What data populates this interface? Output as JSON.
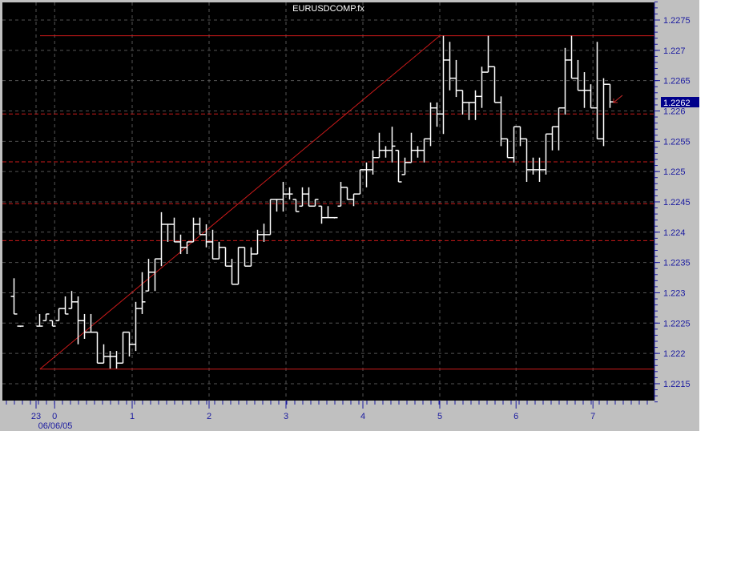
{
  "chart_data": {
    "type": "ohlc-bar",
    "title": "EURUSDCOMP.fx",
    "ylim": [
      1.22115,
      1.22815
    ],
    "yticks": [
      "1.2275",
      "1.227",
      "1.2265",
      "1.226",
      "1.2255",
      "1.225",
      "1.2245",
      "1.224",
      "1.2235",
      "1.223",
      "1.2225",
      "1.222",
      "1.2215"
    ],
    "xticks": [
      {
        "label": "23",
        "bar": 3.5
      },
      {
        "label": "0",
        "bar": 6.4
      },
      {
        "label": "1",
        "bar": 18.5
      },
      {
        "label": "2",
        "bar": 30.5
      },
      {
        "label": "3",
        "bar": 42.5
      },
      {
        "label": "4",
        "bar": 54.5
      },
      {
        "label": "5",
        "bar": 66.5
      },
      {
        "label": "6",
        "bar": 78.4
      },
      {
        "label": "7",
        "bar": 90.4
      }
    ],
    "date_label": "06/06/05",
    "grid": true,
    "last_price": "1.2262",
    "colors": {
      "background": "#000000",
      "bars": "#ffffff",
      "trendlines": "#cc1a1a",
      "axis_text": "#1a1aa0",
      "price_marker": "#00008b",
      "panel": "#c0c0c0"
    },
    "bars_hlc": [
      [
        1.22324,
        1.22265,
        1.22265
      ],
      [
        1.22245,
        1.22245,
        1.22245
      ],
      null,
      null,
      [
        1.22265,
        1.22245,
        1.22245
      ],
      [
        1.22265,
        1.22254,
        1.22265
      ],
      [
        1.22254,
        1.22245,
        1.22245
      ],
      [
        1.22274,
        1.22254,
        1.22274
      ],
      [
        1.22294,
        1.22265,
        1.22265
      ],
      [
        1.22303,
        1.22274,
        1.22285
      ],
      [
        1.22294,
        1.22215,
        1.22254
      ],
      [
        1.22265,
        1.22224,
        1.22235
      ],
      [
        1.22265,
        1.22235,
        1.22235
      ],
      [
        1.22235,
        1.22184,
        1.22184
      ],
      [
        1.22215,
        1.22184,
        1.22195
      ],
      [
        1.22204,
        1.22175,
        1.22195
      ],
      [
        1.22204,
        1.22175,
        1.22184
      ],
      [
        1.22235,
        1.22184,
        1.22235
      ],
      [
        1.22235,
        1.22195,
        1.22215
      ],
      [
        1.22285,
        1.22204,
        1.22274
      ],
      [
        1.22334,
        1.22265,
        1.22285
      ],
      [
        1.22356,
        1.22303,
        1.22334
      ],
      [
        1.22356,
        1.22303,
        1.22356
      ],
      [
        1.22433,
        1.22344,
        1.22413
      ],
      [
        1.22413,
        1.22384,
        1.22413
      ],
      [
        1.22424,
        1.22384,
        1.22384
      ],
      [
        1.22396,
        1.22364,
        1.22375
      ],
      [
        1.22384,
        1.22364,
        1.22384
      ],
      [
        1.22424,
        1.22384,
        1.22413
      ],
      [
        1.22424,
        1.22396,
        1.22396
      ],
      [
        1.22413,
        1.22375,
        1.22384
      ],
      [
        1.22404,
        1.22356,
        1.22356
      ],
      [
        1.22384,
        1.22356,
        1.22375
      ],
      [
        1.22375,
        1.22344,
        1.22344
      ],
      [
        1.22356,
        1.22314,
        1.22314
      ],
      [
        1.22375,
        1.22314,
        1.22375
      ],
      [
        1.22375,
        1.22344,
        1.22344
      ],
      [
        1.22375,
        1.22344,
        1.22364
      ],
      [
        1.22404,
        1.22364,
        1.22396
      ],
      [
        1.22414,
        1.22384,
        1.22396
      ],
      [
        1.22454,
        1.22396,
        1.22454
      ],
      [
        1.22454,
        1.22434,
        1.22454
      ],
      [
        1.22483,
        1.22434,
        1.22463
      ],
      [
        1.22474,
        1.22454,
        1.22463
      ],
      [
        1.22454,
        1.22434,
        1.22434
      ],
      [
        1.22474,
        1.22443,
        1.22463
      ],
      [
        1.22474,
        1.22443,
        1.22443
      ],
      [
        1.22454,
        1.22443,
        1.22454
      ],
      [
        1.22443,
        1.22414,
        1.22424
      ],
      [
        1.22443,
        1.22424,
        1.22424
      ],
      [
        1.22424,
        1.22424,
        1.22424
      ],
      [
        1.22483,
        1.22443,
        1.22474
      ],
      [
        1.22474,
        1.22454,
        1.22454
      ],
      [
        1.22463,
        1.22443,
        1.22463
      ],
      [
        1.22503,
        1.22463,
        1.22503
      ],
      [
        1.22515,
        1.22474,
        1.22503
      ],
      [
        1.22535,
        1.22495,
        1.22523
      ],
      [
        1.22564,
        1.22523,
        1.22535
      ],
      [
        1.22542,
        1.22523,
        1.22535
      ],
      [
        1.22574,
        1.22515,
        1.22542
      ],
      [
        1.22535,
        1.22483,
        1.22483
      ],
      [
        1.22523,
        1.22495,
        1.22515
      ],
      [
        1.22564,
        1.22515,
        1.22535
      ],
      [
        1.22542,
        1.22523,
        1.22535
      ],
      [
        1.22554,
        1.22515,
        1.22554
      ],
      [
        1.22614,
        1.22542,
        1.22605
      ],
      [
        1.22614,
        1.22574,
        1.22595
      ],
      [
        1.22724,
        1.22562,
        1.22684
      ],
      [
        1.22714,
        1.22634,
        1.22654
      ],
      [
        1.22684,
        1.22623,
        1.22634
      ],
      [
        1.22634,
        1.22594,
        1.22614
      ],
      [
        1.22614,
        1.22585,
        1.22614
      ],
      [
        1.22634,
        1.22585,
        1.22624
      ],
      [
        1.22673,
        1.22605,
        1.22664
      ],
      [
        1.22724,
        1.22664,
        1.22673
      ],
      [
        1.22673,
        1.22614,
        1.22614
      ],
      [
        1.22624,
        1.22542,
        1.22554
      ],
      [
        1.22554,
        1.22523,
        1.22523
      ],
      [
        1.22574,
        1.22515,
        1.22574
      ],
      [
        1.22574,
        1.22542,
        1.22554
      ],
      [
        1.22554,
        1.22483,
        1.22503
      ],
      [
        1.22523,
        1.22495,
        1.22503
      ],
      [
        1.22523,
        1.22483,
        1.22503
      ],
      [
        1.22562,
        1.22495,
        1.22562
      ],
      [
        1.22574,
        1.22535,
        1.22574
      ],
      [
        1.22605,
        1.22535,
        1.22605
      ],
      [
        1.22704,
        1.22594,
        1.22684
      ],
      [
        1.22724,
        1.22654,
        1.22654
      ],
      [
        1.22684,
        1.22634,
        1.22634
      ],
      [
        1.22664,
        1.22605,
        1.22634
      ],
      [
        1.22644,
        1.22605,
        1.22605
      ],
      [
        1.22714,
        1.22554,
        1.22554
      ],
      [
        1.22654,
        1.22542,
        1.22644
      ],
      [
        1.22644,
        1.22605,
        1.22615
      ]
    ],
    "horizontal_lines": [
      {
        "price": 1.22724,
        "style": "solid"
      },
      {
        "price": 1.22174,
        "style": "solid"
      },
      {
        "price": 1.22595,
        "style": "dashed"
      },
      {
        "price": 1.22516,
        "style": "dashed"
      },
      {
        "price": 1.22447,
        "style": "dashed"
      },
      {
        "price": 1.22386,
        "style": "dashed"
      }
    ],
    "trendline": {
      "from": {
        "bar": 4.1,
        "price": 1.22174
      },
      "to": {
        "bar": 66.5,
        "price": 1.22724
      }
    }
  }
}
